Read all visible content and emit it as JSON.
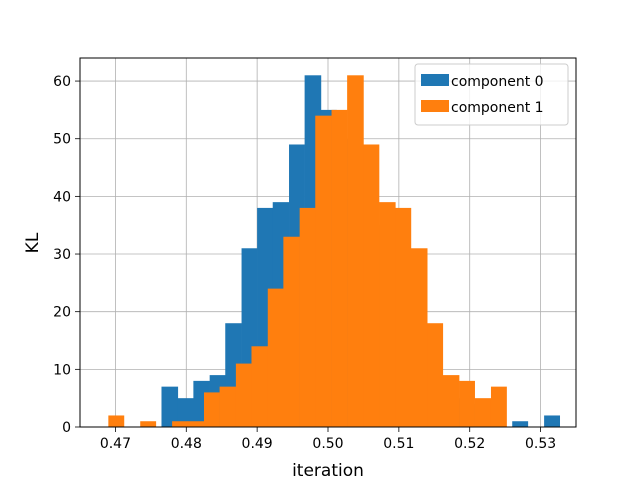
{
  "chart_data": {
    "type": "histogram",
    "xlabel": "iteration",
    "ylabel": "KL",
    "xlim": [
      0.465,
      0.535
    ],
    "ylim": [
      0,
      64
    ],
    "grid": true,
    "legend_position": "top-right",
    "xticks": [
      0.47,
      0.48,
      0.49,
      0.5,
      0.51,
      0.52,
      0.53
    ],
    "xtick_labels": [
      "0.47",
      "0.48",
      "0.49",
      "0.50",
      "0.51",
      "0.52",
      "0.53"
    ],
    "yticks": [
      0,
      10,
      20,
      30,
      40,
      50,
      60
    ],
    "ytick_labels": [
      "0",
      "10",
      "20",
      "30",
      "40",
      "50",
      "60"
    ],
    "series": [
      {
        "name": "component 0",
        "color": "#1f77b4",
        "bins": [
          {
            "x0": 0.4765,
            "x1": 0.4788,
            "count": 7
          },
          {
            "x0": 0.4788,
            "x1": 0.481,
            "count": 5
          },
          {
            "x0": 0.481,
            "x1": 0.4833,
            "count": 8
          },
          {
            "x0": 0.4833,
            "x1": 0.4855,
            "count": 9
          },
          {
            "x0": 0.4855,
            "x1": 0.4878,
            "count": 18
          },
          {
            "x0": 0.4878,
            "x1": 0.49,
            "count": 31
          },
          {
            "x0": 0.49,
            "x1": 0.4922,
            "count": 38
          },
          {
            "x0": 0.4922,
            "x1": 0.4945,
            "count": 39
          },
          {
            "x0": 0.4945,
            "x1": 0.4967,
            "count": 49
          },
          {
            "x0": 0.4967,
            "x1": 0.499,
            "count": 61
          },
          {
            "x0": 0.499,
            "x1": 0.5012,
            "count": 55
          },
          {
            "x0": 0.5012,
            "x1": 0.5035,
            "count": 50
          },
          {
            "x0": 0.5035,
            "x1": 0.5057,
            "count": 42
          },
          {
            "x0": 0.5057,
            "x1": 0.508,
            "count": 35
          },
          {
            "x0": 0.508,
            "x1": 0.5102,
            "count": 29
          },
          {
            "x0": 0.5102,
            "x1": 0.5125,
            "count": 22
          },
          {
            "x0": 0.5125,
            "x1": 0.5147,
            "count": 14
          },
          {
            "x0": 0.5147,
            "x1": 0.517,
            "count": 8
          },
          {
            "x0": 0.517,
            "x1": 0.5192,
            "count": 5
          },
          {
            "x0": 0.5192,
            "x1": 0.5215,
            "count": 4
          },
          {
            "x0": 0.5215,
            "x1": 0.5237,
            "count": 2
          },
          {
            "x0": 0.5237,
            "x1": 0.526,
            "count": 0
          },
          {
            "x0": 0.526,
            "x1": 0.5282,
            "count": 1
          },
          {
            "x0": 0.5282,
            "x1": 0.5305,
            "count": 0
          },
          {
            "x0": 0.5305,
            "x1": 0.5327,
            "count": 2
          }
        ]
      },
      {
        "name": "component 1",
        "color": "#ff7f0e",
        "bins": [
          {
            "x0": 0.469,
            "x1": 0.4712,
            "count": 2
          },
          {
            "x0": 0.4712,
            "x1": 0.4735,
            "count": 0
          },
          {
            "x0": 0.4735,
            "x1": 0.4757,
            "count": 1
          },
          {
            "x0": 0.4757,
            "x1": 0.478,
            "count": 0
          },
          {
            "x0": 0.478,
            "x1": 0.4802,
            "count": 1
          },
          {
            "x0": 0.4802,
            "x1": 0.4825,
            "count": 1
          },
          {
            "x0": 0.4825,
            "x1": 0.4847,
            "count": 6
          },
          {
            "x0": 0.4847,
            "x1": 0.487,
            "count": 7
          },
          {
            "x0": 0.487,
            "x1": 0.4892,
            "count": 11
          },
          {
            "x0": 0.4892,
            "x1": 0.4915,
            "count": 14
          },
          {
            "x0": 0.4915,
            "x1": 0.4937,
            "count": 24
          },
          {
            "x0": 0.4937,
            "x1": 0.496,
            "count": 33
          },
          {
            "x0": 0.496,
            "x1": 0.4982,
            "count": 38
          },
          {
            "x0": 0.4982,
            "x1": 0.5005,
            "count": 54
          },
          {
            "x0": 0.5005,
            "x1": 0.5027,
            "count": 55
          },
          {
            "x0": 0.5027,
            "x1": 0.505,
            "count": 61
          },
          {
            "x0": 0.505,
            "x1": 0.5072,
            "count": 49
          },
          {
            "x0": 0.5072,
            "x1": 0.5095,
            "count": 39
          },
          {
            "x0": 0.5095,
            "x1": 0.5117,
            "count": 38
          },
          {
            "x0": 0.5117,
            "x1": 0.514,
            "count": 31
          },
          {
            "x0": 0.514,
            "x1": 0.5162,
            "count": 18
          },
          {
            "x0": 0.5162,
            "x1": 0.5185,
            "count": 9
          },
          {
            "x0": 0.5185,
            "x1": 0.5207,
            "count": 8
          },
          {
            "x0": 0.5207,
            "x1": 0.523,
            "count": 5
          },
          {
            "x0": 0.523,
            "x1": 0.5252,
            "count": 7
          }
        ]
      }
    ]
  }
}
